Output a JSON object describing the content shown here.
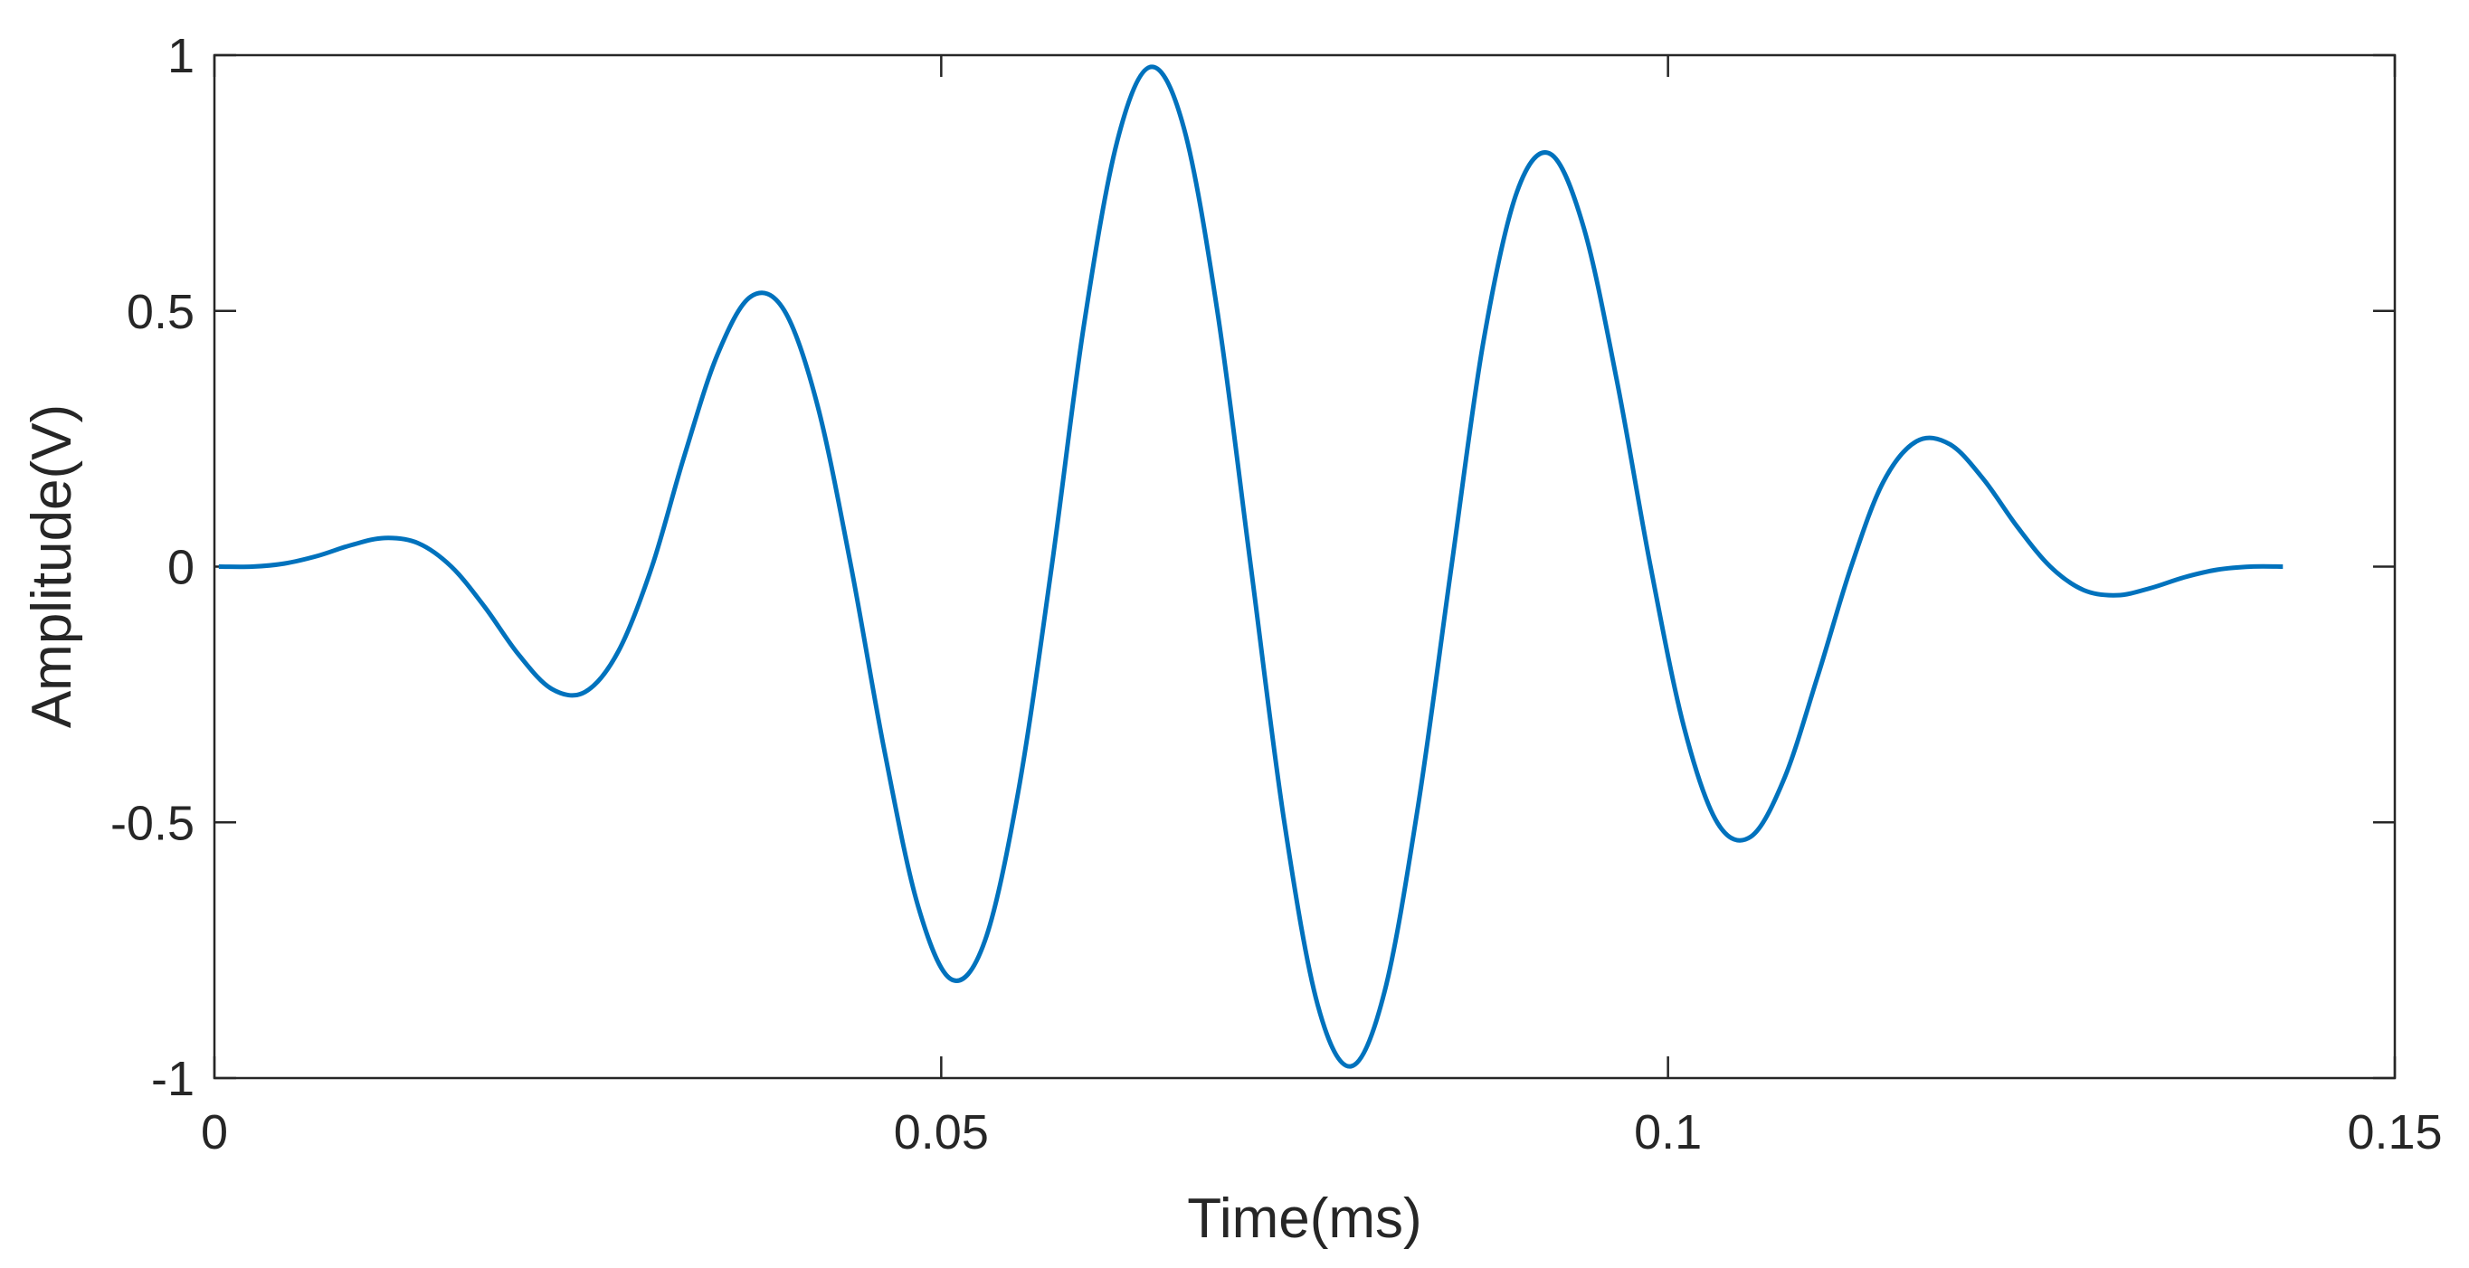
{
  "chart_data": {
    "type": "line",
    "xlabel": "Time(ms)",
    "ylabel": "Amplitude(V)",
    "xlim": [
      0,
      0.15
    ],
    "ylim": [
      -1,
      1
    ],
    "xticks": [
      0,
      0.05,
      0.1,
      0.15
    ],
    "yticks": [
      -1,
      -0.5,
      0,
      0.5,
      1
    ],
    "grid": false,
    "x": [
      0.0003,
      0.0026,
      0.0048,
      0.0071,
      0.0094,
      0.0117,
      0.014,
      0.0163,
      0.0186,
      0.0209,
      0.0232,
      0.0255,
      0.0278,
      0.0301,
      0.0323,
      0.0346,
      0.0369,
      0.0392,
      0.0415,
      0.0438,
      0.0461,
      0.0484,
      0.0507,
      0.053,
      0.0553,
      0.0576,
      0.0598,
      0.0621,
      0.0644,
      0.0667,
      0.069,
      0.0713,
      0.0736,
      0.0759,
      0.0782,
      0.0805,
      0.0828,
      0.0851,
      0.0873,
      0.0896,
      0.0919,
      0.0942,
      0.0965,
      0.0988,
      0.1011,
      0.1034,
      0.1057,
      0.108,
      0.1103,
      0.1126,
      0.1148,
      0.1171,
      0.1194,
      0.1217,
      0.124,
      0.1263,
      0.1286,
      0.1309,
      0.1332,
      0.1355,
      0.1378,
      0.1401,
      0.1423
    ],
    "series": [
      {
        "color": "#0072bd",
        "values": [
          0,
          0,
          0.006,
          0.021,
          0.042,
          0.056,
          0.046,
          0,
          -0.079,
          -0.171,
          -0.239,
          -0.245,
          -0.165,
          0,
          0.214,
          0.414,
          0.528,
          0.501,
          0.314,
          0,
          -0.361,
          -0.663,
          -0.807,
          -0.732,
          -0.44,
          0,
          0.469,
          0.831,
          0.977,
          0.857,
          0.499,
          0,
          -0.499,
          -0.857,
          -0.977,
          -0.831,
          -0.469,
          0,
          0.44,
          0.732,
          0.807,
          0.663,
          0.361,
          0,
          -0.314,
          -0.501,
          -0.528,
          -0.414,
          -0.214,
          0,
          0.165,
          0.245,
          0.239,
          0.171,
          0.079,
          0,
          -0.046,
          -0.056,
          -0.042,
          -0.021,
          -0.006,
          0,
          0
        ]
      }
    ]
  }
}
